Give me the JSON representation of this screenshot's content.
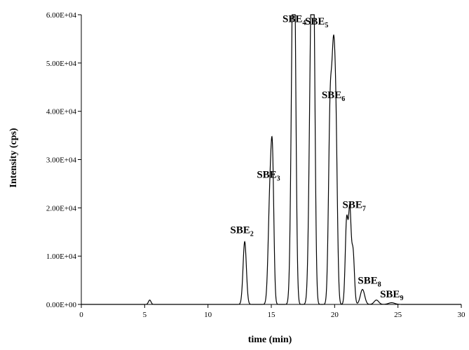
{
  "chart_data": {
    "type": "line",
    "title": "",
    "xlabel": "time (min)",
    "ylabel": "Intensity (cps)",
    "xlim": [
      0,
      30
    ],
    "ylim": [
      0,
      60000
    ],
    "x_ticks": [
      0,
      5,
      10,
      15,
      20,
      25,
      30
    ],
    "x_tick_labels": [
      "0",
      "5",
      "10",
      "15",
      "20",
      "25",
      "30"
    ],
    "y_ticks": [
      0,
      10000,
      20000,
      30000,
      40000,
      50000,
      60000
    ],
    "y_tick_labels": [
      "0.00E+00",
      "1.00E+04",
      "2.00E+04",
      "3.00E+04",
      "4.00E+04",
      "5.00E+04",
      "6.00E+04"
    ],
    "grid": false,
    "legend": "none",
    "line_color": "#000000",
    "series": [
      {
        "peaks": [
          {
            "x": 5.4,
            "y": 900,
            "width": 0.1
          },
          {
            "x": 12.9,
            "y": 13000,
            "width": 0.13
          },
          {
            "x": 14.9,
            "y": 22500,
            "width": 0.14
          },
          {
            "x": 15.1,
            "y": 24500,
            "width": 0.11
          },
          {
            "x": 16.7,
            "y": 57000,
            "width": 0.14
          },
          {
            "x": 16.85,
            "y": 40000,
            "width": 0.12
          },
          {
            "x": 18.15,
            "y": 56500,
            "width": 0.15
          },
          {
            "x": 18.35,
            "y": 48000,
            "width": 0.12
          },
          {
            "x": 19.65,
            "y": 40000,
            "width": 0.13
          },
          {
            "x": 19.9,
            "y": 41000,
            "width": 0.12
          },
          {
            "x": 20.1,
            "y": 33000,
            "width": 0.12
          },
          {
            "x": 20.95,
            "y": 17500,
            "width": 0.11
          },
          {
            "x": 21.2,
            "y": 18500,
            "width": 0.1
          },
          {
            "x": 21.45,
            "y": 11000,
            "width": 0.11
          },
          {
            "x": 22.2,
            "y": 3100,
            "width": 0.17
          },
          {
            "x": 23.3,
            "y": 900,
            "width": 0.18
          },
          {
            "x": 24.5,
            "y": 350,
            "width": 0.25
          }
        ]
      }
    ],
    "annotations": [
      {
        "name": "SBE",
        "sub": "2",
        "x": 12.9,
        "y": 13000
      },
      {
        "name": "SBE",
        "sub": "3",
        "x": 15.0,
        "y": 24500
      },
      {
        "name": "SBE",
        "sub": "4",
        "x": 16.7,
        "y": 57000
      },
      {
        "name": "SBE",
        "sub": "5",
        "x": 18.25,
        "y": 56500
      },
      {
        "name": "SBE",
        "sub": "6",
        "x": 19.9,
        "y": 41000
      },
      {
        "name": "SBE",
        "sub": "7",
        "x": 21.1,
        "y": 18500
      },
      {
        "name": "SBE",
        "sub": "8",
        "x": 22.2,
        "y": 3100
      },
      {
        "name": "SBE",
        "sub": "9",
        "x": 23.4,
        "y": 900
      }
    ]
  }
}
